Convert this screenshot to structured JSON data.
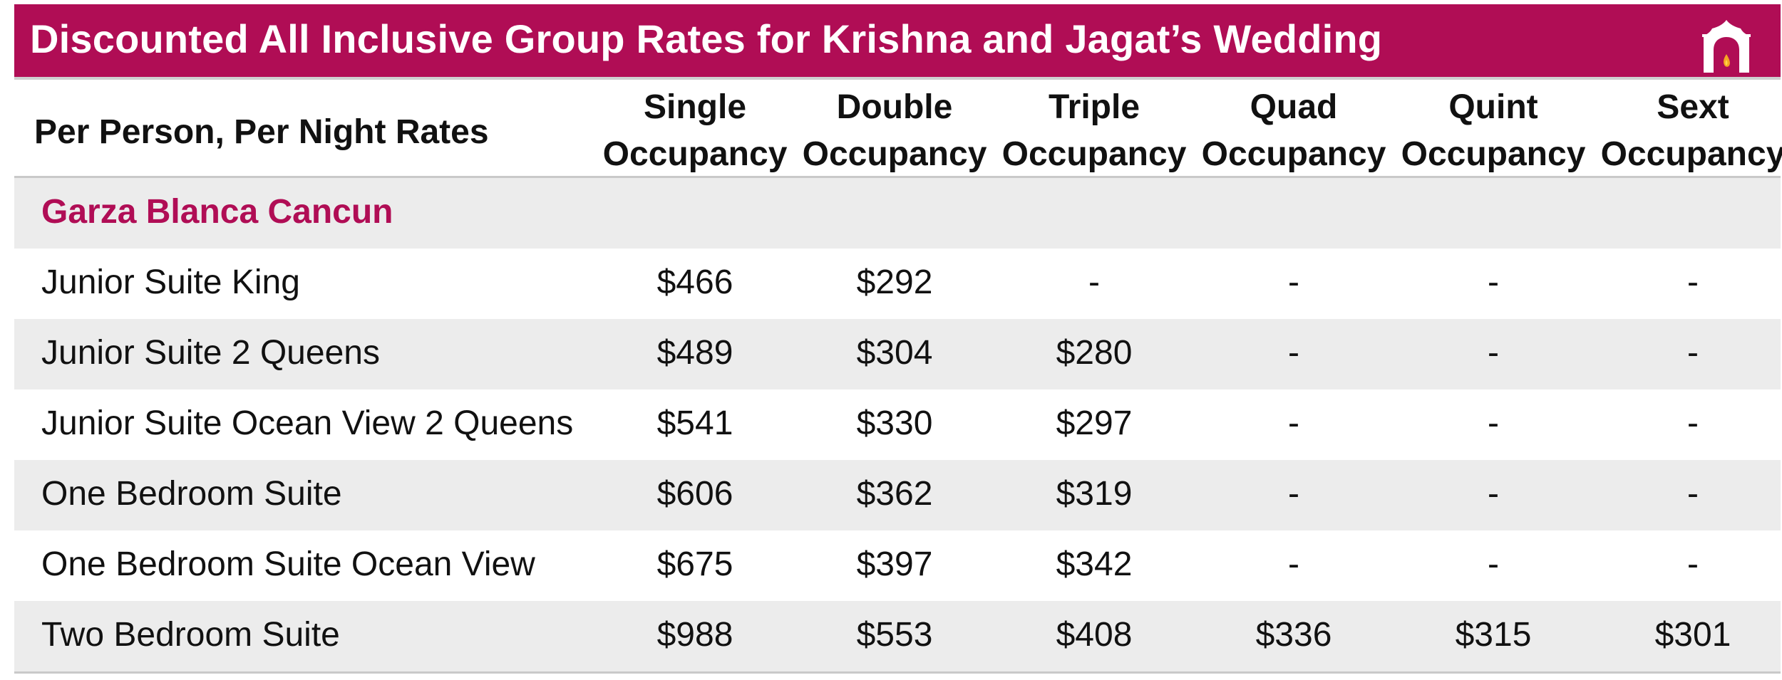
{
  "title": "Discounted All Inclusive Group Rates for Krishna and Jagat’s Wedding",
  "logo_icon": "mandap-canopy-flame-icon",
  "colors": {
    "accent": "#b00d55",
    "stripe": "#ececec",
    "rule": "#c9c9c9"
  },
  "table": {
    "row_header": "Per Person, Per Night Rates",
    "columns": [
      {
        "line1": "Single",
        "line2": "Occupancy"
      },
      {
        "line1": "Double",
        "line2": "Occupancy"
      },
      {
        "line1": "Triple",
        "line2": "Occupancy"
      },
      {
        "line1": "Quad",
        "line2": "Occupancy"
      },
      {
        "line1": "Quint",
        "line2": "Occupancy"
      },
      {
        "line1": "Sext",
        "line2": "Occupancy"
      }
    ],
    "section": "Garza Blanca Cancun",
    "rows": [
      {
        "name": "Junior Suite King",
        "rates": [
          "$466",
          "$292",
          "-",
          "-",
          "-",
          "-"
        ]
      },
      {
        "name": "Junior Suite 2 Queens",
        "rates": [
          "$489",
          "$304",
          "$280",
          "-",
          "-",
          "-"
        ]
      },
      {
        "name": "Junior Suite Ocean View 2 Queens",
        "rates": [
          "$541",
          "$330",
          "$297",
          "-",
          "-",
          "-"
        ]
      },
      {
        "name": "One Bedroom Suite",
        "rates": [
          "$606",
          "$362",
          "$319",
          "-",
          "-",
          "-"
        ]
      },
      {
        "name": "One Bedroom Suite Ocean View",
        "rates": [
          "$675",
          "$397",
          "$342",
          "-",
          "-",
          "-"
        ]
      },
      {
        "name": "Two Bedroom Suite",
        "rates": [
          "$988",
          "$553",
          "$408",
          "$336",
          "$315",
          "$301"
        ]
      }
    ]
  }
}
